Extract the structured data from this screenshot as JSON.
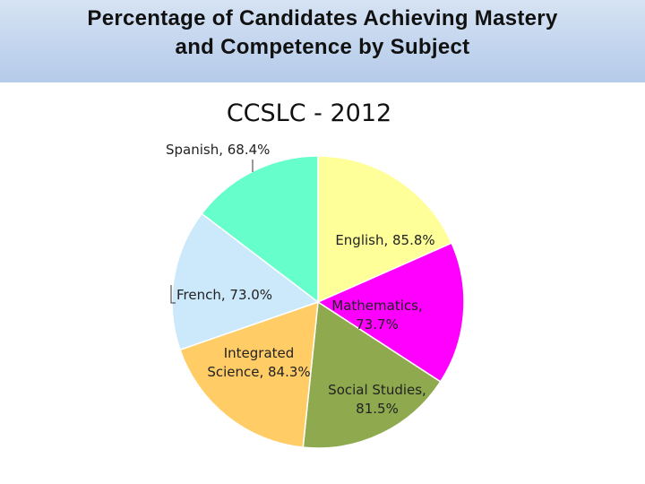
{
  "slide": {
    "title_line1": "Percentage of Candidates Achieving Mastery",
    "title_line2": "and Competence by Subject"
  },
  "chart_data": {
    "type": "pie",
    "title": "CCSLC - 2012",
    "slices": [
      {
        "name": "English",
        "value": 85.8,
        "label_lines": [
          "English, 85.8%"
        ],
        "color": "#ffff99"
      },
      {
        "name": "Mathematics",
        "value": 73.7,
        "label_lines": [
          "Mathematics,",
          "73.7%"
        ],
        "color": "#ff00ff"
      },
      {
        "name": "Social Studies",
        "value": 81.5,
        "label_lines": [
          "Social Studies,",
          "81.5%"
        ],
        "color": "#8faa4e"
      },
      {
        "name": "Integrated Science",
        "value": 84.3,
        "label_lines": [
          "Integrated",
          "Science, 84.3%"
        ],
        "color": "#ffcc66"
      },
      {
        "name": "French",
        "value": 73.0,
        "label_lines": [
          "French, 73.0%"
        ],
        "color": "#cce9fb"
      },
      {
        "name": "Spanish",
        "value": 68.4,
        "label_lines": [
          "Spanish, 68.4%"
        ],
        "color": "#66ffcc"
      }
    ],
    "start": "12 o'clock",
    "direction": "clockwise",
    "legend": "none"
  }
}
